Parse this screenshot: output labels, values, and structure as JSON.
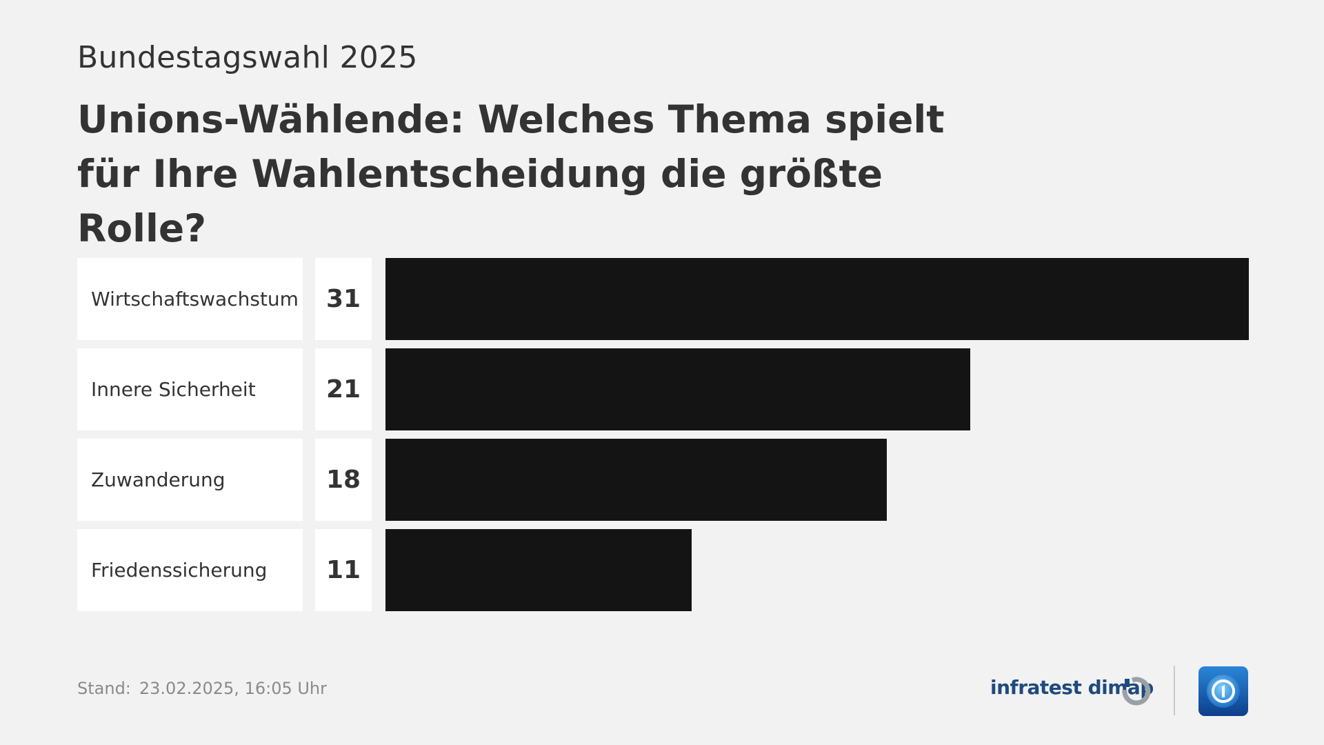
{
  "header": {
    "kicker": "Bundestagswahl 2025",
    "title": "Unions-Wählende: Welches Thema spielt für Ihre Wahlentscheidung die größte Rolle?"
  },
  "chart_data": {
    "type": "bar",
    "orientation": "horizontal",
    "categories": [
      "Wirtschaftswachstum",
      "Innere Sicherheit",
      "Zuwanderung",
      "Friedenssicherung"
    ],
    "values": [
      31,
      21,
      18,
      11
    ],
    "bar_color": "#141414",
    "grid": false,
    "legend": "none"
  },
  "footer": {
    "stand_label": "Stand:",
    "stand_value": "23.02.2025, 16:05 Uhr",
    "source_brand": "infratest dimap"
  },
  "icons": {
    "source_logo": "infratest-dimap-logo-icon",
    "channel_logo": "tagesschau-logo-icon"
  },
  "colors": {
    "background": "#f2f2f2",
    "brand_blue": "#1f4a7d",
    "logo_blue": "#1a6fc4"
  }
}
